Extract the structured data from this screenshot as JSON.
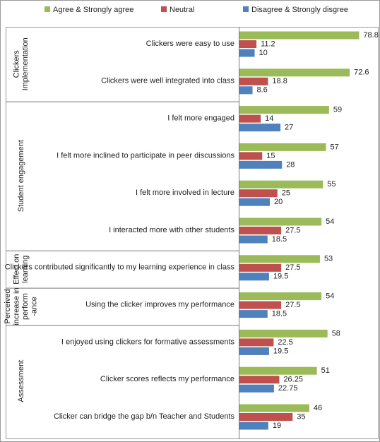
{
  "chart_data": {
    "type": "bar",
    "orientation": "horizontal",
    "groups": [
      {
        "label": [
          "Clickers",
          "Implementation"
        ],
        "categories": [
          "Clickers were easy to use",
          "Clickers were well integrated into class"
        ]
      },
      {
        "label": [
          "Student engagement"
        ],
        "categories": [
          "I felt more engaged",
          "I felt more inclined to participate in peer discussions",
          "I felt more involved in lecture",
          "I interacted more with other students"
        ]
      },
      {
        "label": [
          "Effect on",
          "learning"
        ],
        "categories": [
          "Clickers contributed significantly to my learning experience in class"
        ]
      },
      {
        "label": [
          "Perceived",
          "increase in",
          "perform",
          "-ance"
        ],
        "categories": [
          "Using the clicker improves my performance"
        ]
      },
      {
        "label": [
          "Assessment"
        ],
        "categories": [
          "I enjoyed using clickers for formative assessments",
          "Clicker scores reflects my performance",
          "Clicker can bridge the gap b/n Teacher and Students"
        ]
      }
    ],
    "series": [
      {
        "name": "Agree & Strongly agree",
        "color": "#9bbb59",
        "values": [
          78.8,
          72.6,
          59,
          57,
          55,
          54,
          53,
          54,
          58,
          51,
          46
        ]
      },
      {
        "name": "Neutral",
        "color": "#c0504d",
        "values": [
          11.2,
          18.8,
          14,
          15,
          25,
          27.5,
          27.5,
          27.5,
          22.5,
          26.25,
          35
        ]
      },
      {
        "name": "Disagree & Strongly disgree",
        "color": "#4f81bd",
        "values": [
          10,
          8.6,
          27,
          28,
          20,
          18.5,
          19.5,
          18.5,
          19.5,
          22.75,
          19
        ]
      }
    ]
  }
}
